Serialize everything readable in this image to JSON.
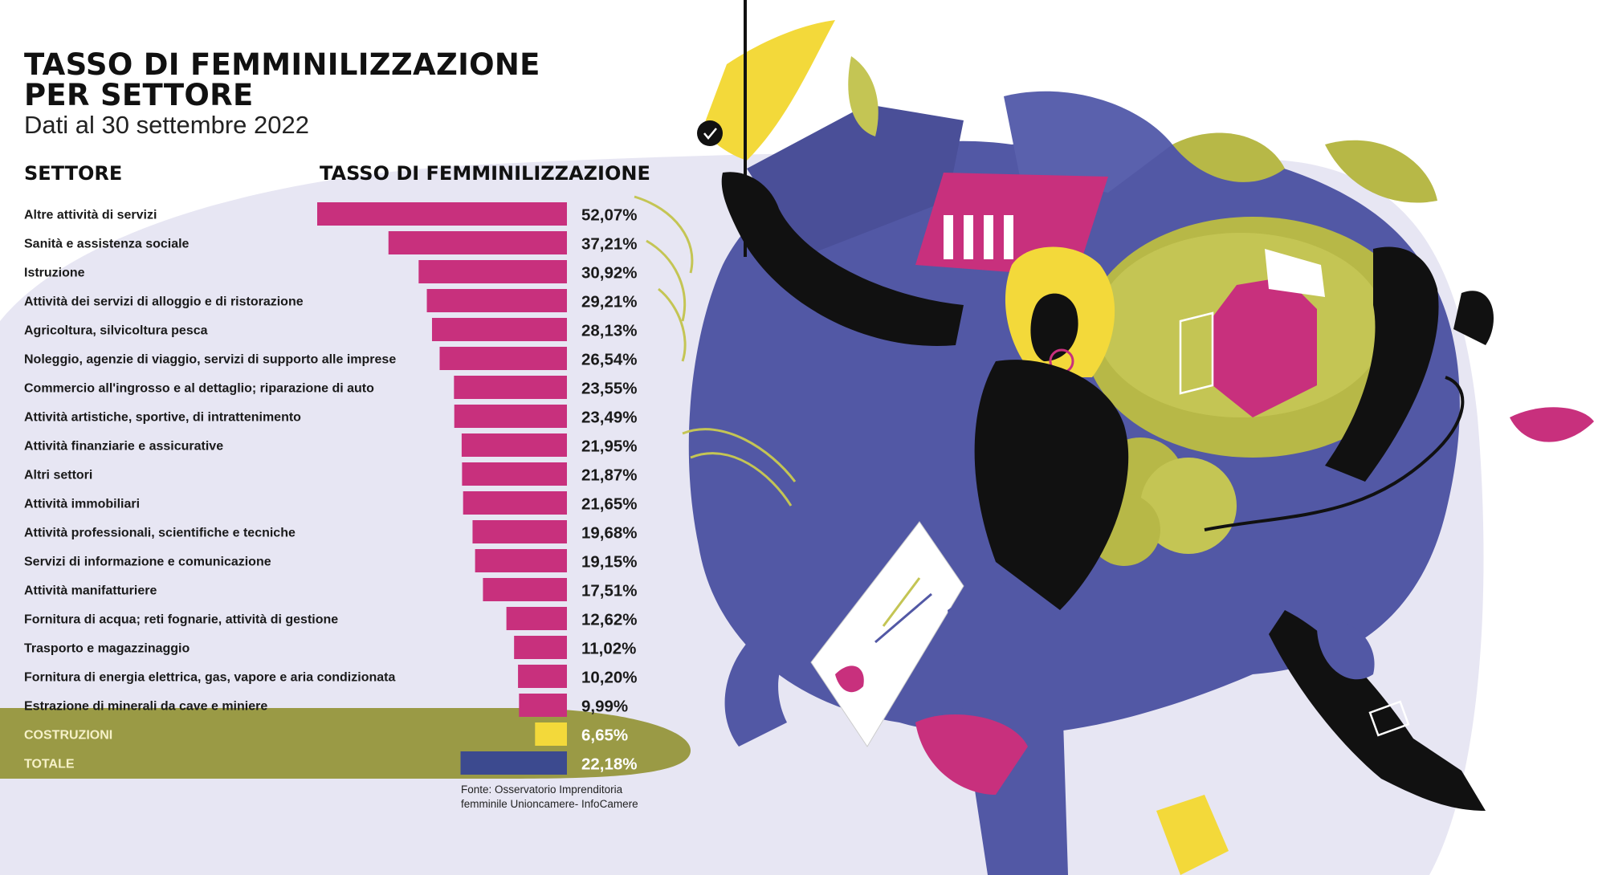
{
  "title_line1": "TASSO DI FEMMINILIZZAZIONE",
  "title_line2": "PER SETTORE",
  "subtitle": "Dati al 30 settembre 2022",
  "header_left": "SETTORE",
  "header_right": "TASSO DI FEMMINILIZZAZIONE",
  "source_line1": "Fonte: Osservatorio Imprenditoria",
  "source_line2": "femminile Unioncamere- InfoCamere",
  "colors": {
    "bar": "#c8307d",
    "costruzioni": "#f3d93a",
    "totale": "#3c4a8f",
    "highlight_band": "#9a9a45",
    "background_blob": "#e7e6f3"
  },
  "chart_data": {
    "type": "bar",
    "orientation": "horizontal",
    "categories": [
      "Altre attività di servizi",
      "Sanità e assistenza sociale",
      "Istruzione",
      "Attività dei servizi di alloggio e di ristorazione",
      "Agricoltura, silvicoltura pesca",
      "Noleggio, agenzie di viaggio, servizi di supporto alle imprese",
      "Commercio all'ingrosso e al dettaglio; riparazione di auto",
      "Attività artistiche, sportive, di intrattenimento",
      "Attività finanziarie e assicurative",
      "Altri settori",
      "Attività immobiliari",
      "Attività professionali, scientifiche e tecniche",
      "Servizi di informazione e comunicazione",
      "Attività manifatturiere",
      "Fornitura di acqua; reti fognarie, attività di gestione",
      "Trasporto e magazzinaggio",
      "Fornitura di energia elettrica, gas, vapore e aria condizionata",
      "Estrazione di minerali da cave e miniere",
      "COSTRUZIONI",
      "TOTALE"
    ],
    "values": [
      52.07,
      37.21,
      30.92,
      29.21,
      28.13,
      26.54,
      23.55,
      23.49,
      21.95,
      21.87,
      21.65,
      19.68,
      19.15,
      17.51,
      12.62,
      11.02,
      10.2,
      9.99,
      6.65,
      22.18
    ],
    "labels": [
      "52,07%",
      "37,21%",
      "30,92%",
      "29,21%",
      "28,13%",
      "26,54%",
      "23,55%",
      "23,49%",
      "21,95%",
      "21,87%",
      "21,65%",
      "19,68%",
      "19,15%",
      "17,51%",
      "12,62%",
      "11,02%",
      "10,20%",
      "9,99%",
      "6,65%",
      "22,18%"
    ],
    "highlighted": [
      "COSTRUZIONI",
      "TOTALE"
    ],
    "xlim": [
      0,
      52.07
    ],
    "bar_direction": "right-aligned, extending left"
  }
}
